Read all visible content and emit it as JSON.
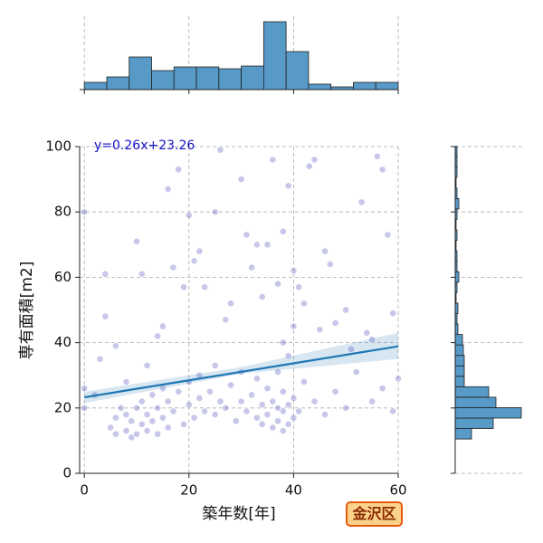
{
  "chart_data": [
    {
      "type": "scatter",
      "xlabel": "築年数[年]",
      "ylabel": "専有面積[m2]",
      "xlim": [
        -0.9,
        60
      ],
      "ylim": [
        0,
        100
      ],
      "xticks": [
        0,
        20,
        40,
        60
      ],
      "yticks": [
        0,
        20,
        40,
        60,
        80,
        100
      ],
      "grid": true,
      "color": "#3535b5",
      "x": [
        0,
        0,
        2,
        5,
        6,
        6,
        7,
        8,
        8,
        9,
        9,
        10,
        10,
        11,
        11,
        12,
        12,
        13,
        13,
        14,
        14,
        15,
        15,
        16,
        16,
        17,
        18,
        19,
        20,
        20,
        21,
        22,
        22,
        23,
        24,
        25,
        25,
        26,
        27,
        28,
        29,
        30,
        30,
        31,
        32,
        33,
        33,
        34,
        34,
        35,
        35,
        36,
        36,
        37,
        37,
        37,
        38,
        38,
        38,
        38,
        39,
        39,
        39,
        40,
        40,
        40,
        41,
        42,
        44,
        46,
        48,
        50,
        52,
        55,
        57,
        59,
        0,
        4,
        4,
        6,
        10,
        11,
        14,
        15,
        16,
        17,
        18,
        19,
        20,
        21,
        22,
        23,
        25,
        26,
        27,
        28,
        30,
        31,
        32,
        33,
        34,
        35,
        36,
        37,
        38,
        39,
        40,
        41,
        42,
        43,
        44,
        45,
        46,
        48,
        50,
        51,
        53,
        54,
        56,
        57,
        58,
        59,
        60,
        55,
        47,
        12,
        8,
        3
      ],
      "y": [
        20,
        26,
        24,
        14,
        12,
        17,
        20,
        13,
        18,
        11,
        16,
        12,
        20,
        15,
        22,
        13,
        18,
        16,
        24,
        12,
        20,
        17,
        26,
        14,
        22,
        19,
        25,
        15,
        21,
        28,
        17,
        23,
        30,
        19,
        25,
        18,
        33,
        22,
        20,
        27,
        16,
        22,
        31,
        19,
        24,
        17,
        29,
        15,
        21,
        26,
        18,
        14,
        22,
        16,
        20,
        31,
        13,
        19,
        25,
        40,
        15,
        21,
        36,
        17,
        23,
        45,
        19,
        28,
        22,
        18,
        25,
        20,
        31,
        22,
        26,
        19,
        80,
        61,
        48,
        39,
        71,
        61,
        42,
        45,
        87,
        63,
        93,
        57,
        79,
        65,
        68,
        57,
        80,
        99,
        47,
        52,
        90,
        73,
        63,
        70,
        54,
        70,
        96,
        58,
        74,
        88,
        62,
        57,
        52,
        94,
        96,
        44,
        68,
        46,
        50,
        38,
        83,
        43,
        97,
        93,
        73,
        49,
        29,
        41,
        64,
        33,
        28,
        35
      ],
      "regression": {
        "slope": 0.26,
        "intercept": 23.26,
        "label": "y=0.26x+23.26",
        "color": "#1f77b4",
        "ci_x": [
          0,
          30,
          60
        ],
        "ci_lower": [
          21.5,
          30.5,
          35
        ],
        "ci_upper": [
          25,
          32.5,
          43
        ]
      }
    },
    {
      "type": "histogram",
      "orientation": "vertical",
      "color": "#5799c7",
      "bins": [
        0,
        4.29,
        8.57,
        12.86,
        17.14,
        21.43,
        25.71,
        30,
        34.29,
        38.57,
        42.86,
        47.14,
        51.43,
        55.71,
        60
      ],
      "counts": [
        8,
        14,
        36,
        21,
        25,
        25,
        23,
        26,
        75,
        42,
        6,
        3,
        8,
        8
      ]
    },
    {
      "type": "histogram",
      "orientation": "horizontal",
      "color": "#5799c7",
      "bins": [
        10.5,
        13.7,
        16.9,
        20.1,
        23.3,
        26.5,
        29.7,
        32.9,
        36.1,
        39.3,
        42.5,
        45.7,
        48.9,
        52.1,
        55.3,
        58.5,
        61.7,
        64.9,
        68.1,
        71.3,
        74.5,
        77.7,
        80.9,
        84.1,
        87.3,
        90.5,
        93.7,
        96.9,
        100.1
      ],
      "counts": [
        18,
        42,
        73,
        45,
        37,
        10,
        10,
        10,
        9,
        8,
        3,
        2,
        3,
        1,
        2,
        4,
        2,
        2,
        1,
        2,
        1,
        2,
        4,
        2,
        1,
        2,
        2,
        2
      ]
    }
  ],
  "badge": "金沢区"
}
